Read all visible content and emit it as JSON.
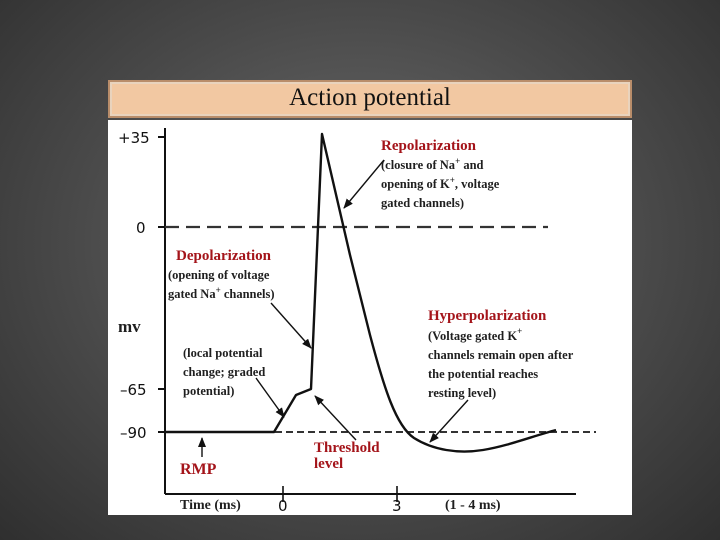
{
  "slide": {
    "title": "Action potential"
  },
  "diagram": {
    "y_tick_labels": {
      "plus35": "+35",
      "zero": "0",
      "minus65": "–65",
      "minus90": "–90"
    },
    "y_axis_label": "mv",
    "x_axis_label": "Time (ms)",
    "x_tick_labels": {
      "t0": "0",
      "t3": "3"
    },
    "x_range_note": "(1 - 4 ms)",
    "annotations": {
      "repolarization": {
        "title": "Repolarization",
        "lines": [
          "(closure of Na",
          " and",
          "opening of K",
          ", voltage",
          "gated channels)"
        ],
        "sup_na": "+",
        "sup_k": "+"
      },
      "depolarization": {
        "title": "Depolarization",
        "lines": [
          "(opening of voltage",
          "gated Na",
          " channels)"
        ],
        "sup_na": "+"
      },
      "hyperpolarization": {
        "title": "Hyperpolarization",
        "lines": [
          "(Voltage gated K",
          "channels remain open after",
          "the potential reaches",
          "resting level)"
        ],
        "sup_k": "+"
      },
      "local_potential": {
        "lines": [
          "(local potential",
          "change; graded",
          "potential)"
        ]
      },
      "threshold": {
        "lines": [
          "Threshold",
          "level"
        ]
      },
      "rmp": "RMP"
    },
    "colors": {
      "trace": "#111111",
      "accent_red": "#a4141a",
      "banner": "#f2c8a2"
    }
  }
}
